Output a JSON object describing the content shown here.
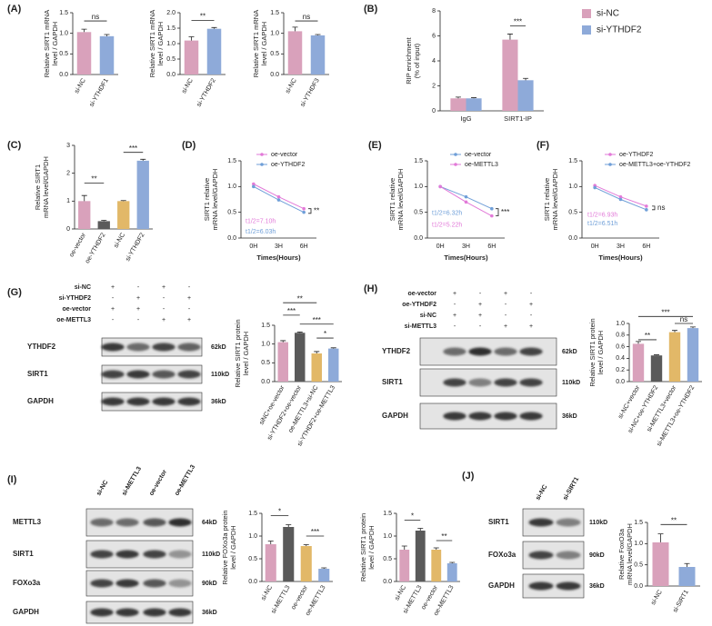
{
  "panels": [
    "(A)",
    "(B)",
    "(C)",
    "(D)",
    "(E)",
    "(F)",
    "(G)",
    "(H)",
    "(I)",
    "(J)"
  ],
  "chart_data": [
    {
      "type": "bar",
      "y_label": [
        "Relative SIRT1 mRNA",
        "level / GAPDH"
      ],
      "categories": [
        "si-NC",
        "si-YTHDF1"
      ],
      "values": [
        1.03,
        0.93
      ],
      "errors": [
        0.07,
        0.04
      ],
      "colors": [
        "#d9a1bb",
        "#8eaad9"
      ],
      "ylim": [
        0,
        1.5
      ],
      "yticks": [
        {
          "value": 0,
          "label": "0.0"
        },
        0.5,
        {
          "value": 1,
          "label": "1.0"
        },
        1.5
      ],
      "annotations": [
        "ns"
      ]
    },
    {
      "type": "bar",
      "y_label": [
        "Relative SIRT1 mRNA",
        "level / GAPDH"
      ],
      "categories": [
        "si-NC",
        "si-YTHDF2"
      ],
      "values": [
        1.1,
        1.48
      ],
      "errors": [
        0.12,
        0.04
      ],
      "colors": [
        "#d9a1bb",
        "#8eaad9"
      ],
      "ylim": [
        0,
        2
      ],
      "yticks": [
        {
          "value": 0,
          "label": "0.0"
        },
        0.5,
        {
          "value": 1,
          "label": "1.0"
        },
        1.5,
        {
          "value": 2,
          "label": "2.0"
        }
      ],
      "annotations": [
        "**"
      ]
    },
    {
      "type": "bar",
      "y_label": [
        "Relative SIRT1 mRNA",
        "level / GAPDH"
      ],
      "categories": [
        "si-NC",
        "si-YTHDF3"
      ],
      "values": [
        1.05,
        0.95
      ],
      "errors": [
        0.1,
        0.02
      ],
      "colors": [
        "#d9a1bb",
        "#8eaad9"
      ],
      "ylim": [
        0,
        1.5
      ],
      "yticks": [
        {
          "value": 0,
          "label": "0.0"
        },
        0.5,
        {
          "value": 1,
          "label": "1.0"
        },
        1.5
      ],
      "annotations": [
        "ns"
      ]
    },
    {
      "type": "bar",
      "y_label": [
        "RIP enrichment",
        "(% of input)"
      ],
      "categories": [
        "IgG",
        "SIRT1-IP"
      ],
      "series": [
        {
          "name": "si-NC",
          "color": "#d9a1bb",
          "values": [
            1.0,
            5.7
          ],
          "errors": [
            0.1,
            0.45
          ]
        },
        {
          "name": "si-YTHDF2",
          "color": "#8eaad9",
          "values": [
            1.0,
            2.45
          ],
          "errors": [
            0.05,
            0.15
          ]
        }
      ],
      "ylim": [
        0,
        8
      ],
      "yticks": [
        0,
        2,
        4,
        6,
        8
      ],
      "annotations": [
        "***"
      ]
    },
    {
      "type": "bar",
      "y_label": [
        "Relative SIRT1",
        "mRNA level/GAPDH"
      ],
      "categories": [
        "oe-vector",
        "oe-YTHDF2",
        "si-NC",
        "si-YTHDF2"
      ],
      "values": [
        1.0,
        0.28,
        1.0,
        2.45
      ],
      "errors": [
        0.2,
        0.03,
        0.02,
        0.05
      ],
      "colors": [
        "#d9a1bb",
        "#5a5a5a",
        "#e2b868",
        "#8eaad9"
      ],
      "ylim": [
        0,
        3
      ],
      "yticks": [
        0,
        1,
        2,
        3
      ],
      "annotations": [
        "**",
        "***"
      ]
    },
    {
      "type": "line",
      "y_label": [
        "SIRT1 relative",
        "mRNA level/GAPDH"
      ],
      "x_label": "Times(Hours)",
      "categories": [
        "0H",
        "3H",
        "6H"
      ],
      "series": [
        {
          "name": "oe-vector",
          "color": "#e27ad8",
          "values": [
            1.05,
            0.8,
            0.57
          ]
        },
        {
          "name": "oe-YTHDF2",
          "color": "#6f9fd8",
          "values": [
            1.0,
            0.74,
            0.5
          ]
        }
      ],
      "ylim": [
        0,
        1.5
      ],
      "yticks": [
        {
          "value": 0,
          "label": "0.0"
        },
        0.5,
        {
          "value": 1,
          "label": "1.0"
        },
        1.5
      ],
      "annotations": [
        "t1/2=7.10h",
        "t1/2=6.03h",
        "**"
      ]
    },
    {
      "type": "line",
      "y_label": [
        "SIRT1 relative",
        "mRNA level/GAPDH"
      ],
      "x_label": "Times(Hours)",
      "categories": [
        "0H",
        "3H",
        "6H"
      ],
      "series": [
        {
          "name": "oe-vector",
          "color": "#6f9fd8",
          "values": [
            1.0,
            0.8,
            0.57
          ]
        },
        {
          "name": "oe-METTL3",
          "color": "#e27ad8",
          "values": [
            1.0,
            0.7,
            0.43
          ]
        }
      ],
      "ylim": [
        0,
        1.5
      ],
      "yticks": [
        {
          "value": 0,
          "label": "0.0"
        },
        0.5,
        {
          "value": 1,
          "label": "1.0"
        },
        1.5
      ],
      "annotations": [
        "t1/2=6.32h",
        "t1/2=5.22h",
        "***"
      ]
    },
    {
      "type": "line",
      "y_label": [
        "SIRT1 relative",
        "mRNA level/GAPDH"
      ],
      "x_label": "Times(Hours)",
      "categories": [
        "0H",
        "3H",
        "6H"
      ],
      "series": [
        {
          "name": "oe-YTHDF2",
          "color": "#e27ad8",
          "values": [
            1.02,
            0.8,
            0.62
          ]
        },
        {
          "name": "oe-METTL3+oe-YTHDF2",
          "color": "#6f9fd8",
          "values": [
            0.98,
            0.75,
            0.55
          ]
        }
      ],
      "ylim": [
        0,
        1.5
      ],
      "yticks": [
        {
          "value": 0,
          "label": "0.0"
        },
        0.5,
        {
          "value": 1,
          "label": "1.0"
        },
        1.5
      ],
      "annotations": [
        "t1/2=6.93h",
        "t1/2=6.51h",
        "ns"
      ]
    },
    {
      "type": "bar",
      "y_label": [
        "Relative SIRT1 protein",
        "level / GAPDH"
      ],
      "categories": [
        "siNC+oe-vector",
        "si-YTHDF2+oe-vector",
        "oe-METTL3+si-NC",
        "si-YTHDF2+oe-METTL3"
      ],
      "values": [
        1.05,
        1.3,
        0.75,
        0.88
      ],
      "errors": [
        0.04,
        0.02,
        0.05,
        0.02
      ],
      "colors": [
        "#d9a1bb",
        "#5a5a5a",
        "#e2b868",
        "#8eaad9"
      ],
      "ylim": [
        0,
        1.5
      ],
      "yticks": [
        {
          "value": 0,
          "label": "0.0"
        },
        0.5,
        {
          "value": 1,
          "label": "1.0"
        },
        1.5
      ],
      "annotations": [
        "***",
        "**",
        "***",
        "*"
      ]
    },
    {
      "type": "bar",
      "y_label": [
        "Relative SIRT1 protein",
        "level / GAPDH"
      ],
      "categories": [
        "si-NC+vector",
        "si-NC+oe-YTHDF2",
        "si-METTL3+vector",
        "si-METTL3+oe-YTHDF2"
      ],
      "values": [
        0.65,
        0.45,
        0.85,
        0.92
      ],
      "errors": [
        0.04,
        0.01,
        0.03,
        0.02
      ],
      "colors": [
        "#d9a1bb",
        "#5a5a5a",
        "#e2b868",
        "#8eaad9"
      ],
      "ylim": [
        0,
        1
      ],
      "yticks": [
        {
          "value": 0,
          "label": "0.0"
        },
        0.2,
        0.4,
        0.6,
        0.8,
        {
          "value": 1,
          "label": "1.0"
        }
      ],
      "annotations": [
        "**",
        "***",
        "ns"
      ]
    },
    {
      "type": "bar",
      "y_label": [
        "Relative FOXo3a protein",
        "level / GAPDH"
      ],
      "categories": [
        "si-NC",
        "si-METTL3",
        "oe-vector",
        "oe-METTL3"
      ],
      "values": [
        0.82,
        1.2,
        0.78,
        0.28
      ],
      "errors": [
        0.07,
        0.05,
        0.03,
        0.02
      ],
      "colors": [
        "#d9a1bb",
        "#5a5a5a",
        "#e2b868",
        "#8eaad9"
      ],
      "ylim": [
        0,
        1.5
      ],
      "yticks": [
        {
          "value": 0,
          "label": "0.0"
        },
        0.5,
        {
          "value": 1,
          "label": "1.0"
        },
        1.5
      ],
      "annotations": [
        "*",
        "***"
      ]
    },
    {
      "type": "bar",
      "y_label": [
        "Relative SIRT1 protein",
        "level / GAPDH"
      ],
      "categories": [
        "si-NC",
        "si-METTL3",
        "oe-vector",
        "oe-METTL3"
      ],
      "values": [
        0.7,
        1.12,
        0.7,
        0.4
      ],
      "errors": [
        0.08,
        0.05,
        0.04,
        0.02
      ],
      "colors": [
        "#d9a1bb",
        "#5a5a5a",
        "#e2b868",
        "#8eaad9"
      ],
      "ylim": [
        0,
        1.5
      ],
      "yticks": [
        {
          "value": 0,
          "label": "0.0"
        },
        0.5,
        {
          "value": 1,
          "label": "1.0"
        },
        1.5
      ],
      "annotations": [
        "*",
        "**"
      ]
    },
    {
      "type": "bar",
      "y_label": [
        "Relative FoxO3a",
        "mRNA level/GAPDH"
      ],
      "categories": [
        "si-NC",
        "si-SIRT1"
      ],
      "values": [
        1.03,
        0.45
      ],
      "errors": [
        0.2,
        0.08
      ],
      "colors": [
        "#d9a1bb",
        "#8eaad9"
      ],
      "ylim": [
        0,
        1.5
      ],
      "yticks": [
        {
          "value": 0,
          "label": "0.0"
        },
        0.5,
        {
          "value": 1,
          "label": "1.0"
        },
        1.5
      ],
      "annotations": [
        "**"
      ]
    }
  ],
  "blots": [
    {
      "conditions": [
        {
          "name": "si-NC",
          "signs": [
            "+",
            "-",
            "+",
            "-"
          ]
        },
        {
          "name": "si-YTHDF2",
          "signs": [
            "-",
            "+",
            "-",
            "+"
          ]
        },
        {
          "name": "oe-vector",
          "signs": [
            "+",
            "+",
            "-",
            "-"
          ]
        },
        {
          "name": "oe-METTL3",
          "signs": [
            "-",
            "-",
            "+",
            "+"
          ]
        }
      ],
      "bands": [
        {
          "protein": "YTHDF2",
          "size": "62kD"
        },
        {
          "protein": "SIRT1",
          "size": "110kD"
        },
        {
          "protein": "GAPDH",
          "size": "36kD"
        }
      ]
    },
    {
      "conditions": [
        {
          "name": "oe-vector",
          "signs": [
            "+",
            "-",
            "+",
            "-"
          ]
        },
        {
          "name": "oe-YTHDF2",
          "signs": [
            "-",
            "+",
            "-",
            "+"
          ]
        },
        {
          "name": "si-NC",
          "signs": [
            "+",
            "+",
            "-",
            "-"
          ]
        },
        {
          "name": "si-METTL3",
          "signs": [
            "-",
            "-",
            "+",
            "+"
          ]
        }
      ],
      "bands": [
        {
          "protein": "YTHDF2",
          "size": "62kD"
        },
        {
          "protein": "SIRT1",
          "size": "110kD"
        },
        {
          "protein": "GAPDH",
          "size": "36kD"
        }
      ]
    },
    {
      "lanes": [
        "si-NC",
        "si-METTL3",
        "oe-vector",
        "oe-METTL3"
      ],
      "bands": [
        {
          "protein": "METTL3",
          "size": "64kD"
        },
        {
          "protein": "SIRT1",
          "size": "110kD"
        },
        {
          "protein": "FOXo3a",
          "size": "90kD"
        },
        {
          "protein": "GAPDH",
          "size": "36kD"
        }
      ]
    },
    {
      "lanes": [
        "si-NC",
        "si-SIRT1"
      ],
      "bands": [
        {
          "protein": "SIRT1",
          "size": "110kD"
        },
        {
          "protein": "FOXo3a",
          "size": "90kD"
        },
        {
          "protein": "GAPDH",
          "size": "36kD"
        }
      ]
    }
  ]
}
